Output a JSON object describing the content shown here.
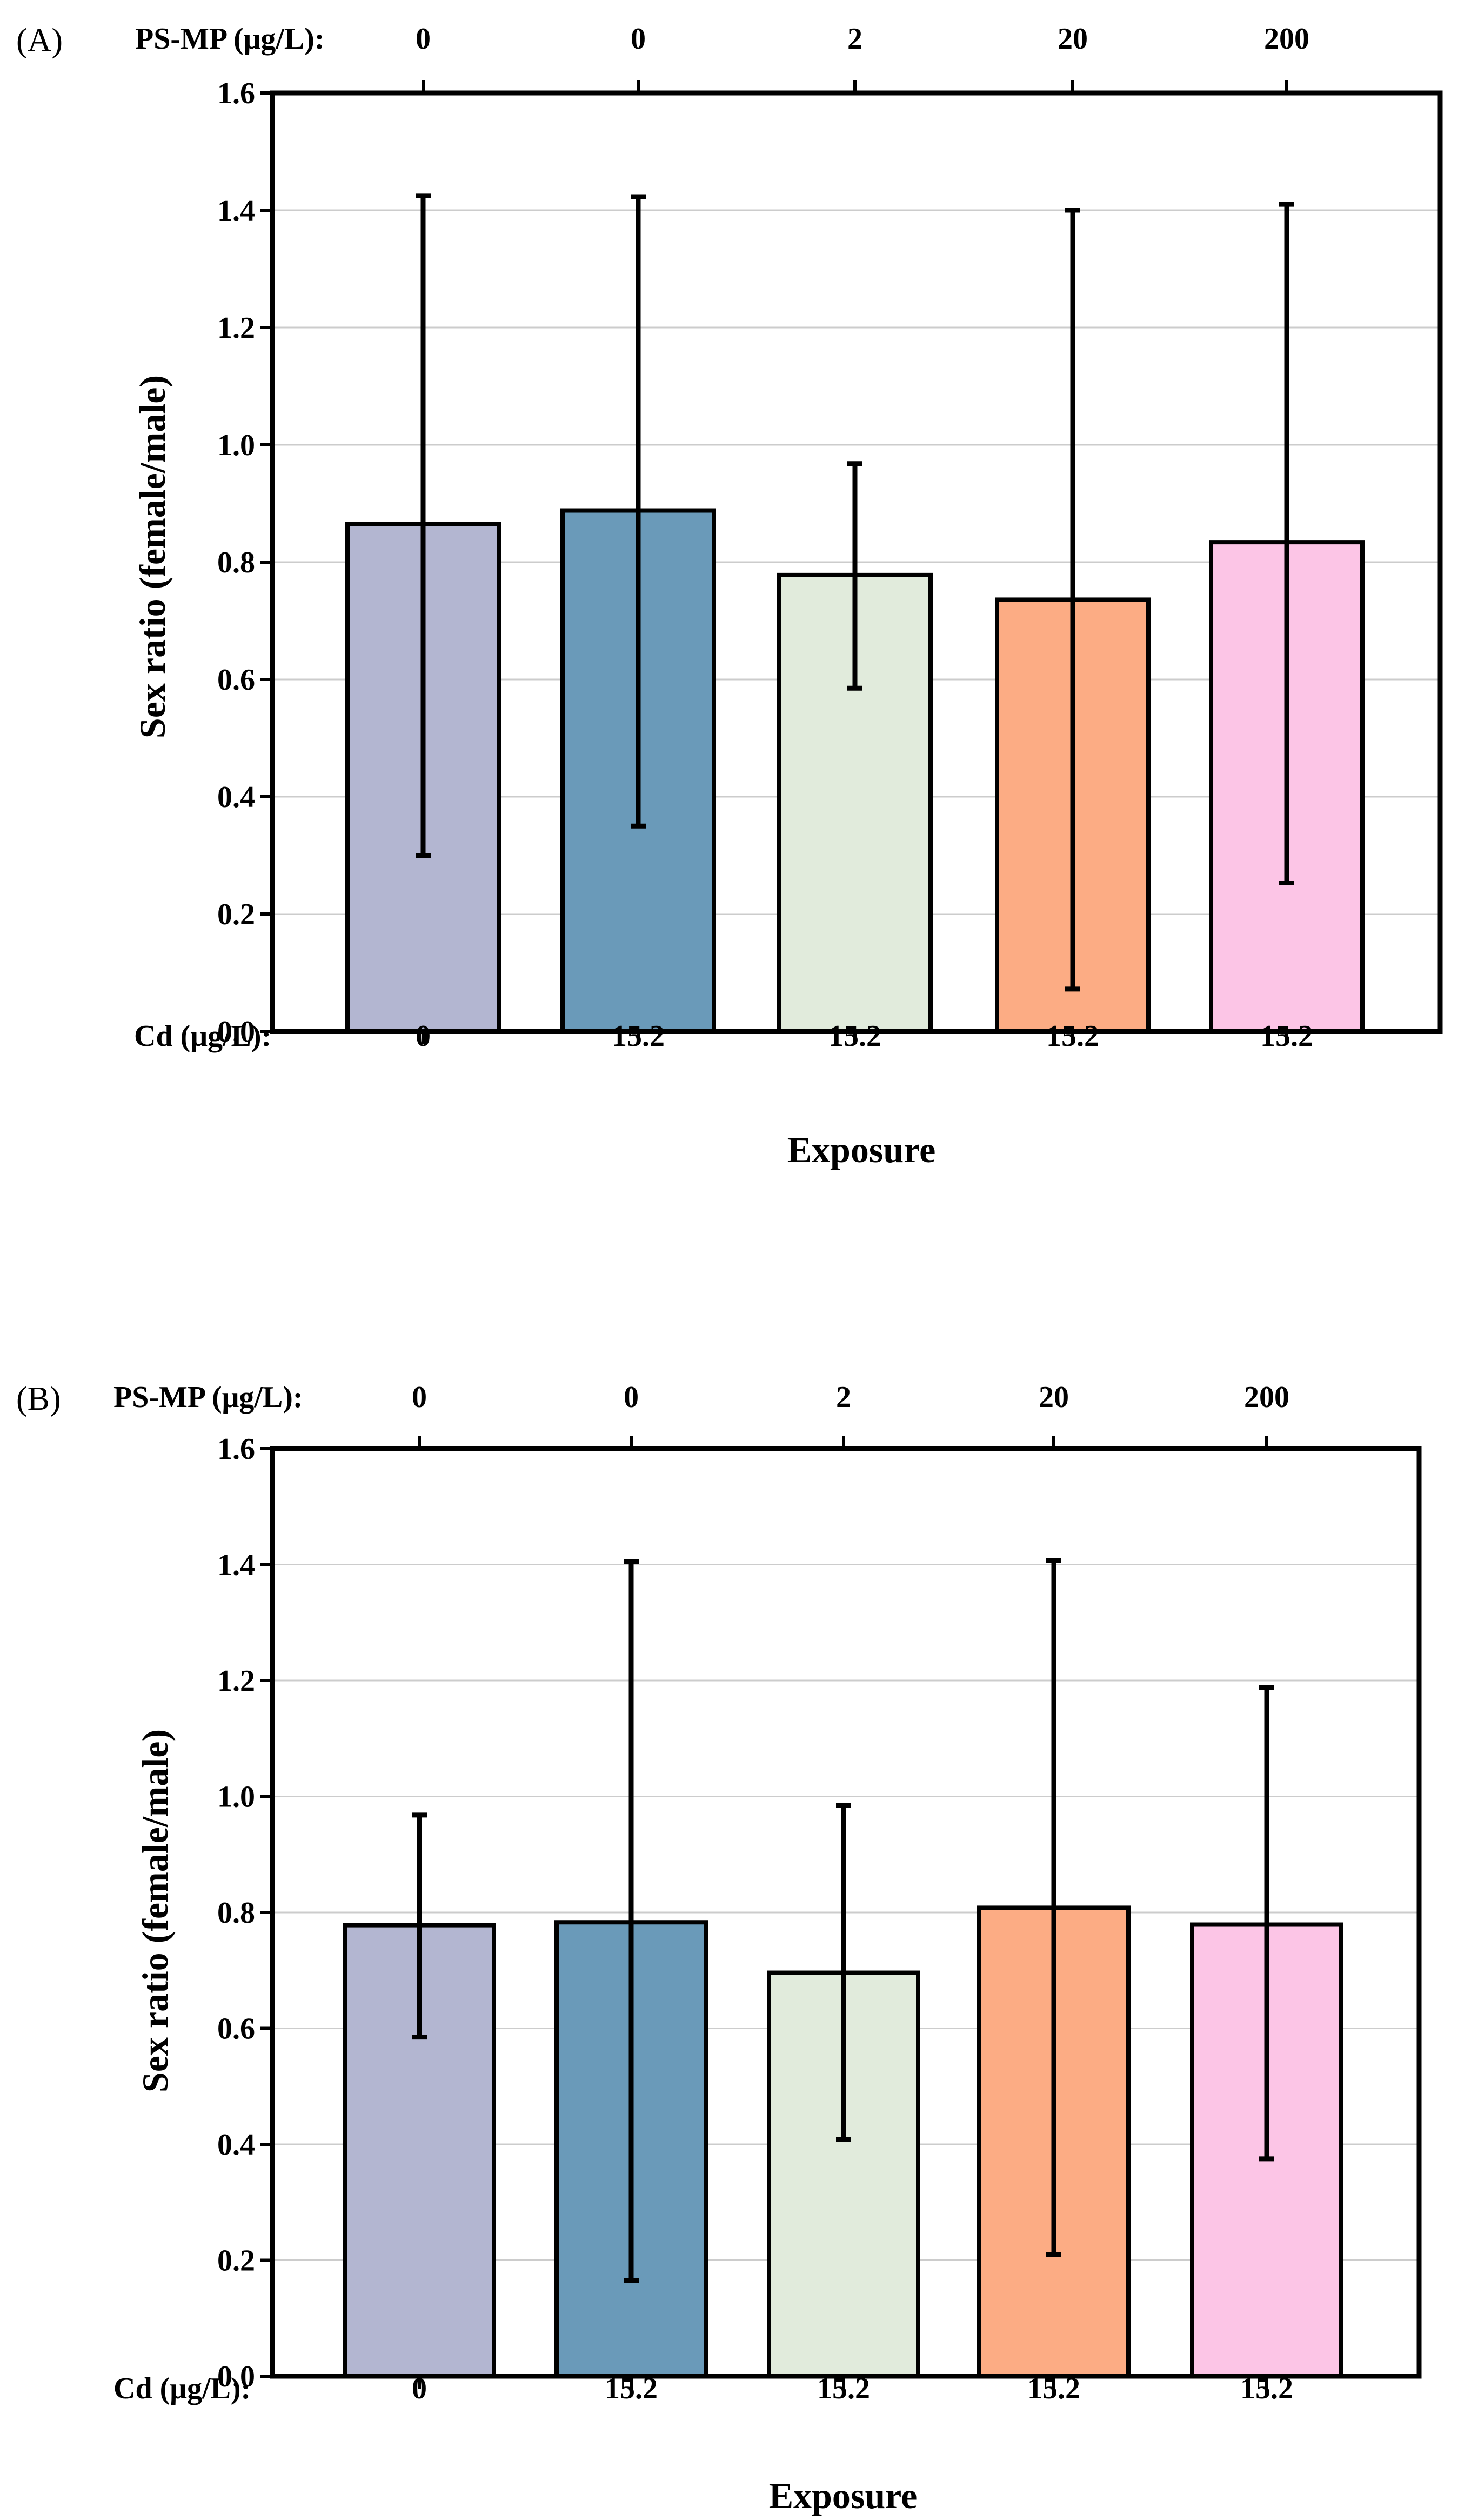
{
  "chart_data": [
    {
      "type": "bar",
      "panel_label": "(A)",
      "top_row_label": "PS-MP (μg/L):",
      "top_values": [
        "0",
        "0",
        "2",
        "20",
        "200"
      ],
      "bottom_row_label": "Cd (μg/L):",
      "categories": [
        "0",
        "15.2",
        "15.2",
        "15.2",
        "15.2"
      ],
      "xlabel": "Exposure",
      "ylabel": "Sex ratio (female/male)",
      "ylim": [
        0,
        1.6
      ],
      "yticks": [
        "0.0",
        "0.2",
        "0.4",
        "0.6",
        "0.8",
        "1.0",
        "1.2",
        "1.4",
        "1.6"
      ],
      "grid": true,
      "values": [
        0.865,
        0.888,
        0.778,
        0.736,
        0.834
      ],
      "error_high": [
        1.425,
        1.423,
        0.968,
        1.4,
        1.41
      ],
      "error_low": [
        0.3,
        0.35,
        0.585,
        0.072,
        0.253
      ],
      "colors": [
        "#b3b6d1",
        "#6a9ab9",
        "#e1ebdc",
        "#fcac84",
        "#fcc5e6"
      ]
    },
    {
      "type": "bar",
      "panel_label": "(B)",
      "top_row_label": "PS-MP (μg/L):",
      "top_values": [
        "0",
        "0",
        "2",
        "20",
        "200"
      ],
      "bottom_row_label": "Cd (μg/L):",
      "categories": [
        "0",
        "15.2",
        "15.2",
        "15.2",
        "15.2"
      ],
      "xlabel": "Exposure",
      "ylabel": "Sex ratio (female/male)",
      "ylim": [
        0,
        1.6
      ],
      "yticks": [
        "0.0",
        "0.2",
        "0.4",
        "0.6",
        "0.8",
        "1.0",
        "1.2",
        "1.4",
        "1.6"
      ],
      "grid": true,
      "values": [
        0.778,
        0.783,
        0.696,
        0.808,
        0.779
      ],
      "error_high": [
        0.968,
        1.405,
        0.985,
        1.407,
        1.188
      ],
      "error_low": [
        0.585,
        0.165,
        0.408,
        0.21,
        0.375
      ],
      "colors": [
        "#b3b6d1",
        "#6a9ab9",
        "#e1ebdc",
        "#fcac84",
        "#fcc5e6"
      ]
    }
  ]
}
